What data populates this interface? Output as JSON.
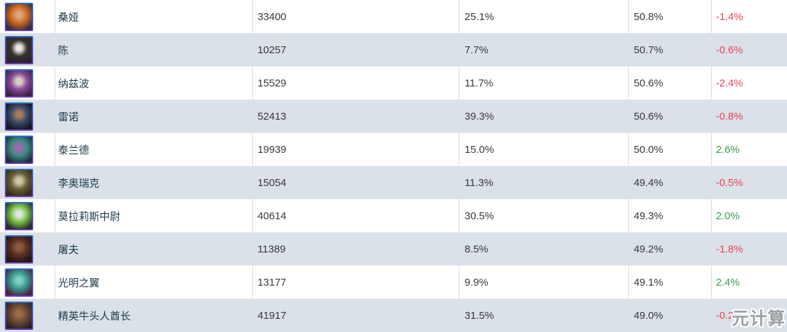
{
  "table": {
    "columns": [
      "avatar",
      "hero-name",
      "games-played",
      "popularity",
      "win-rate",
      "win-rate-change"
    ],
    "rows": [
      {
        "avatar_id": "sonya",
        "name": "桑娅",
        "games": "33400",
        "popularity": "25.1%",
        "winrate": "50.8%",
        "change": "-1.4%",
        "avatar_colors": [
          "#d9a77f",
          "#d2691e",
          "#2e2b44"
        ]
      },
      {
        "avatar_id": "chen",
        "name": "陈",
        "games": "10257",
        "popularity": "7.7%",
        "winrate": "50.7%",
        "change": "-0.6%",
        "avatar_colors": [
          "#e8e4de",
          "#35322e",
          "#2a2433"
        ]
      },
      {
        "avatar_id": "nazeebo",
        "name": "纳兹波",
        "games": "15529",
        "popularity": "11.7%",
        "winrate": "50.6%",
        "change": "-2.4%",
        "avatar_colors": [
          "#d8cfc0",
          "#8a4a9a",
          "#3a2140"
        ]
      },
      {
        "avatar_id": "raynor",
        "name": "雷诺",
        "games": "52413",
        "popularity": "39.3%",
        "winrate": "50.6%",
        "change": "-0.8%",
        "avatar_colors": [
          "#a8795a",
          "#3a4a66",
          "#10141e"
        ]
      },
      {
        "avatar_id": "tyrande",
        "name": "泰兰德",
        "games": "19939",
        "popularity": "15.0%",
        "winrate": "50.0%",
        "change": "2.6%",
        "avatar_colors": [
          "#9a6ab0",
          "#3e8a80",
          "#1c2a3e"
        ]
      },
      {
        "avatar_id": "leoric",
        "name": "李奥瑞克",
        "games": "15054",
        "popularity": "11.3%",
        "winrate": "49.4%",
        "change": "-0.5%",
        "avatar_colors": [
          "#cfc7a8",
          "#6a6036",
          "#2e2a18"
        ]
      },
      {
        "avatar_id": "lt-morales",
        "name": "莫拉莉斯中尉",
        "games": "40614",
        "popularity": "30.5%",
        "winrate": "49.3%",
        "change": "2.0%",
        "avatar_colors": [
          "#e0e4e6",
          "#7ac142",
          "#23282e"
        ]
      },
      {
        "avatar_id": "butcher",
        "name": "屠夫",
        "games": "11389",
        "popularity": "8.5%",
        "winrate": "49.2%",
        "change": "-1.8%",
        "avatar_colors": [
          "#8a5a3a",
          "#5a2e22",
          "#1e1412"
        ]
      },
      {
        "avatar_id": "brightwing",
        "name": "光明之翼",
        "games": "13177",
        "popularity": "9.9%",
        "winrate": "49.1%",
        "change": "2.4%",
        "avatar_colors": [
          "#7ecfc0",
          "#3a9a8e",
          "#4a2040"
        ]
      },
      {
        "avatar_id": "etc",
        "name": "精英牛头人酋长",
        "games": "41917",
        "popularity": "31.5%",
        "winrate": "49.0%",
        "change": "-0.2%",
        "avatar_colors": [
          "#9a6a4a",
          "#6b4a32",
          "#2a1e28"
        ]
      }
    ]
  },
  "watermark": "元计算",
  "colors": {
    "stripe": "#dbe1e8",
    "cell_border": "#d9dde2",
    "name_text": "#1d3b4a",
    "value_text": "#383838",
    "negative": "#f0414e",
    "positive": "#2f9e44",
    "avatar_frame_top": "#2e6fc8",
    "avatar_frame_bottom": "#6a3ab0"
  }
}
